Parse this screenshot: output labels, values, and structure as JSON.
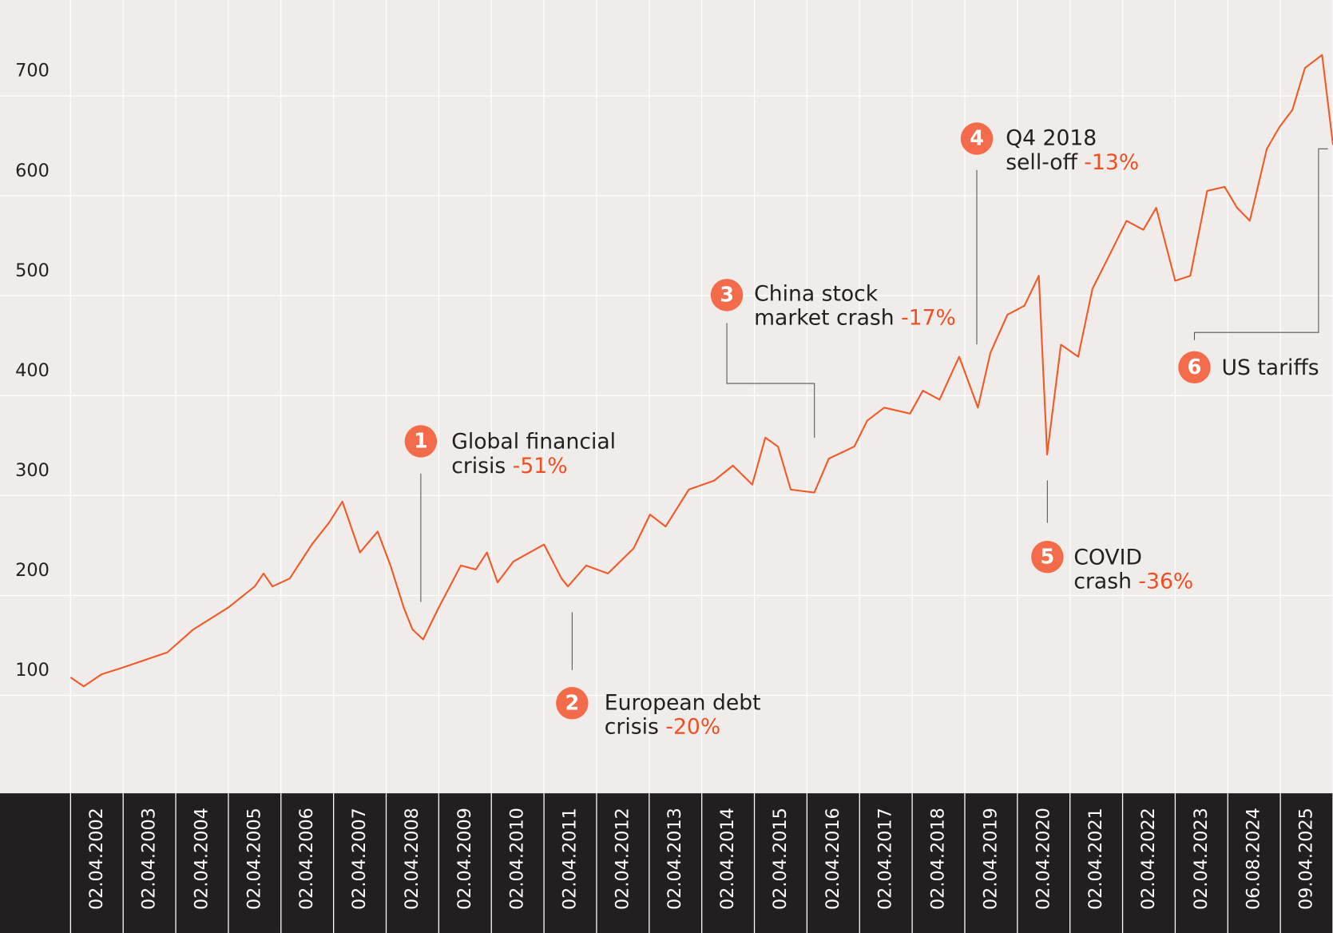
{
  "chart_data": {
    "type": "line",
    "xlim": [
      "02.04.2001",
      "09.04.2025"
    ],
    "xticks": [
      "02.04.2002",
      "02.04.2003",
      "02.04.2004",
      "02.04.2005",
      "02.04.2006",
      "02.04.2007",
      "02.04.2008",
      "02.04.2009",
      "02.04.2010",
      "02.04.2011",
      "02.04.2012",
      "02.04.2013",
      "02.04.2014",
      "02.04.2015",
      "02.04.2016",
      "02.04.2017",
      "02.04.2018",
      "02.04.2019",
      "02.04.2020",
      "02.04.2021",
      "02.04.2022",
      "02.04.2023",
      "06.08.2024",
      "09.04.2025"
    ],
    "ylim": [
      2,
      796
    ],
    "yticks": [
      100,
      200,
      300,
      400,
      500,
      600,
      700
    ],
    "grid": true,
    "series": [
      {
        "color": "#f15a29",
        "x": [
          "02.04.2001",
          "02.07.2001",
          "02.11.2001",
          "02.04.2002",
          "02.10.2002",
          "02.02.2003",
          "02.08.2003",
          "02.04.2004",
          "02.10.2004",
          "02.12.2004",
          "02.02.2005",
          "02.06.2005",
          "02.11.2005",
          "02.03.2006",
          "02.06.2006",
          "02.10.2006",
          "02.02.2007",
          "02.05.2007",
          "02.08.2007",
          "02.10.2007",
          "15.12.2007",
          "02.04.2008",
          "02.09.2008",
          "15.12.2008",
          "02.03.2009",
          "15.05.2009",
          "02.09.2009",
          "02.04.2010",
          "02.08.2010",
          "15.09.2010",
          "20.01.2011",
          "20.06.2011",
          "15.12.2011",
          "08.04.2012",
          "25.07.2012",
          "02.01.2013",
          "27.06.2013",
          "04.11.2013",
          "18.03.2014",
          "17.06.2014",
          "13.09.2014",
          "10.12.2014",
          "23.05.2015",
          "01.09.2015",
          "25.02.2016",
          "25.05.2016",
          "20.09.2016",
          "18.03.2017",
          "15.06.2017",
          "09.10.2017",
          "22.02.2018",
          "02.07.2018",
          "27.09.2018",
          "23.01.2019",
          "21.05.2019",
          "29.08.2019",
          "26.10.2019",
          "30.01.2020",
          "29.05.2020",
          "05.09.2020",
          "02.01.2021",
          "29.04.2021",
          "24.08.2021",
          "21.11.2021",
          "02.04.2022",
          "16.07.2022",
          "10.11.2022",
          "11.03.2023",
          "28.06.2023",
          "25.10.2023",
          "01.04.2024",
          "29.07.2024",
          "01.10.2024",
          "29.11.2024",
          "17.02.2025",
          "09.04.2025"
        ],
        "values": [
          118,
          109,
          121,
          128,
          137,
          143,
          166,
          188,
          209,
          222,
          209,
          217,
          251,
          273,
          294,
          243,
          264,
          230,
          188,
          166,
          156,
          188,
          230,
          226,
          243,
          213,
          234,
          251,
          217,
          209,
          230,
          222,
          247,
          281,
          269,
          306,
          315,
          330,
          311,
          358,
          349,
          306,
          303,
          337,
          349,
          375,
          388,
          382,
          405,
          396,
          439,
          388,
          443,
          481,
          490,
          520,
          341,
          451,
          439,
          507,
          541,
          575,
          566,
          588,
          515,
          520,
          605,
          609,
          588,
          575,
          647,
          669,
          686,
          728,
          741,
          651
        ]
      }
    ],
    "annotations": [
      {
        "number": "1",
        "lines": [
          "Global financial",
          "crisis"
        ],
        "change": "-51%"
      },
      {
        "number": "2",
        "lines": [
          "European debt",
          "crisis"
        ],
        "change": "-20%"
      },
      {
        "number": "3",
        "lines": [
          "China stock",
          "market crash"
        ],
        "change": "-17%"
      },
      {
        "number": "4",
        "lines": [
          "Q4 2018",
          "sell-off"
        ],
        "change": "-13%"
      },
      {
        "number": "5",
        "lines": [
          "COVID",
          "crash"
        ],
        "change": "-36%"
      },
      {
        "number": "6",
        "lines": [
          "US tariffs"
        ]
      }
    ]
  }
}
